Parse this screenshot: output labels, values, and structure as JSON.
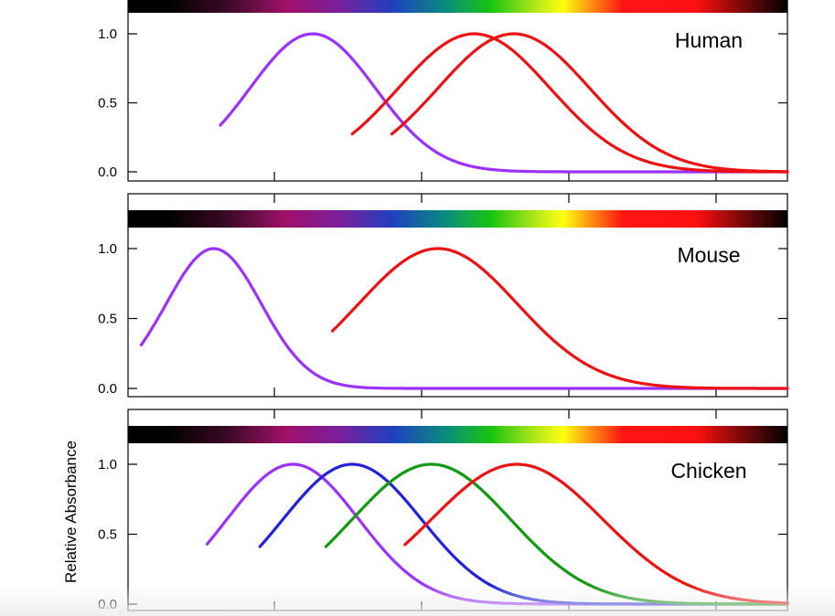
{
  "chart_data": {
    "type": "line",
    "ylabel": "Relative Absorbance",
    "ylim": [
      0,
      1.2
    ],
    "x_domain": [
      0,
      100
    ],
    "y_ticks": [
      "0.0",
      "0.5",
      "1.0"
    ],
    "x_ticks_visible": 4,
    "spectrum_bar": "black-violet-blue-green-yellow-red-black gradient across the top of each panel",
    "panels": [
      {
        "label": "Human",
        "curves": [
          {
            "color": "#9b30ff",
            "peak": 28,
            "width": 9.5,
            "start": 14,
            "end": 100
          },
          {
            "color": "#ee1111",
            "peak": 52.5,
            "width": 11.5,
            "start": 34,
            "end": 100
          },
          {
            "color": "#ee1111",
            "peak": 58.5,
            "width": 11.5,
            "start": 40,
            "end": 100
          }
        ]
      },
      {
        "label": "Mouse",
        "curves": [
          {
            "color": "#9b30ff",
            "peak": 13,
            "width": 7.2,
            "start": 2,
            "end": 100
          },
          {
            "color": "#ee1111",
            "peak": 47,
            "width": 12,
            "start": 31,
            "end": 100
          }
        ]
      },
      {
        "label": "Chicken",
        "curves": [
          {
            "color": "#9b30ff",
            "peak": 25,
            "width": 10,
            "start": 12,
            "end": 100
          },
          {
            "color": "#2222dd",
            "peak": 34,
            "width": 10.5,
            "start": 20,
            "end": 100
          },
          {
            "color": "#119911",
            "peak": 46,
            "width": 12,
            "start": 30,
            "end": 100
          },
          {
            "color": "#ee1111",
            "peak": 59,
            "width": 13,
            "start": 42,
            "end": 100
          }
        ]
      }
    ]
  }
}
